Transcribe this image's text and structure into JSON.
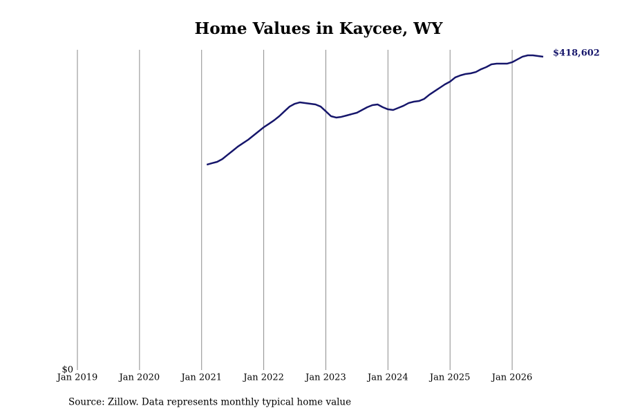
{
  "chart_data": {
    "type": "line",
    "title": "Home Values in Kaycee, WY",
    "source": "Source: Zillow. Data represents monthly typical home value",
    "x": [
      "2021-02",
      "2021-03",
      "2021-04",
      "2021-05",
      "2021-06",
      "2021-07",
      "2021-08",
      "2021-09",
      "2021-10",
      "2021-11",
      "2021-12",
      "2022-01",
      "2022-02",
      "2022-03",
      "2022-04",
      "2022-05",
      "2022-06",
      "2022-07",
      "2022-08",
      "2022-09",
      "2022-10",
      "2022-11",
      "2022-12",
      "2023-01",
      "2023-02",
      "2023-03",
      "2023-04",
      "2023-05",
      "2023-06",
      "2023-07",
      "2023-08",
      "2023-09",
      "2023-10",
      "2023-11",
      "2023-12",
      "2024-01",
      "2024-02",
      "2024-03",
      "2024-04",
      "2024-05",
      "2024-06",
      "2024-07",
      "2024-08",
      "2024-09",
      "2024-10",
      "2024-11",
      "2024-12",
      "2025-01",
      "2025-02",
      "2025-03",
      "2025-04",
      "2025-05",
      "2025-06",
      "2025-07",
      "2025-08",
      "2025-09",
      "2025-10",
      "2025-11",
      "2025-12",
      "2026-01",
      "2026-02",
      "2026-03",
      "2026-04",
      "2026-05",
      "2026-06",
      "2026-07"
    ],
    "series": [
      {
        "color": "#16166b",
        "values": [
          274400,
          276300,
          278100,
          281800,
          287400,
          292900,
          298500,
          303100,
          307700,
          313200,
          318800,
          324300,
          328900,
          333600,
          339100,
          345600,
          352000,
          355700,
          357600,
          356700,
          355700,
          354800,
          352000,
          345600,
          339100,
          337300,
          338200,
          340000,
          341900,
          343700,
          347400,
          351100,
          353900,
          354800,
          351100,
          348300,
          347400,
          350200,
          353000,
          356700,
          358500,
          359400,
          362200,
          367800,
          372400,
          377000,
          381600,
          385300,
          390900,
          393600,
          395500,
          396400,
          398200,
          401900,
          404700,
          408400,
          409300,
          409300,
          409300,
          411200,
          414900,
          418600,
          420400,
          420400,
          419500,
          418602
        ],
        "value_labels": [
          null,
          null,
          null,
          null,
          null,
          null,
          null,
          null,
          null,
          null,
          null,
          null,
          null,
          null,
          null,
          null,
          null,
          null,
          null,
          null,
          null,
          null,
          null,
          null,
          null,
          null,
          null,
          null,
          null,
          null,
          null,
          null,
          null,
          null,
          null,
          null,
          null,
          null,
          null,
          null,
          null,
          null,
          null,
          null,
          null,
          null,
          null,
          null,
          null,
          null,
          null,
          null,
          null,
          null,
          null,
          null,
          null,
          null,
          null,
          null,
          null,
          null,
          null,
          null,
          null,
          "$418,602"
        ]
      }
    ],
    "xlim": [
      "2019-01",
      "2026-07"
    ],
    "xticks": [
      {
        "value": "2019-01",
        "label": "Jan 2019"
      },
      {
        "value": "2020-01",
        "label": "Jan 2020"
      },
      {
        "value": "2021-01",
        "label": "Jan 2021"
      },
      {
        "value": "2022-01",
        "label": "Jan 2022"
      },
      {
        "value": "2023-01",
        "label": "Jan 2023"
      },
      {
        "value": "2024-01",
        "label": "Jan 2024"
      },
      {
        "value": "2025-01",
        "label": "Jan 2025"
      },
      {
        "value": "2026-01",
        "label": "Jan 2026"
      }
    ],
    "ylim": [
      0,
      427800
    ],
    "yticks": [
      {
        "value": 0,
        "label": "$0"
      }
    ],
    "grid": "x"
  }
}
